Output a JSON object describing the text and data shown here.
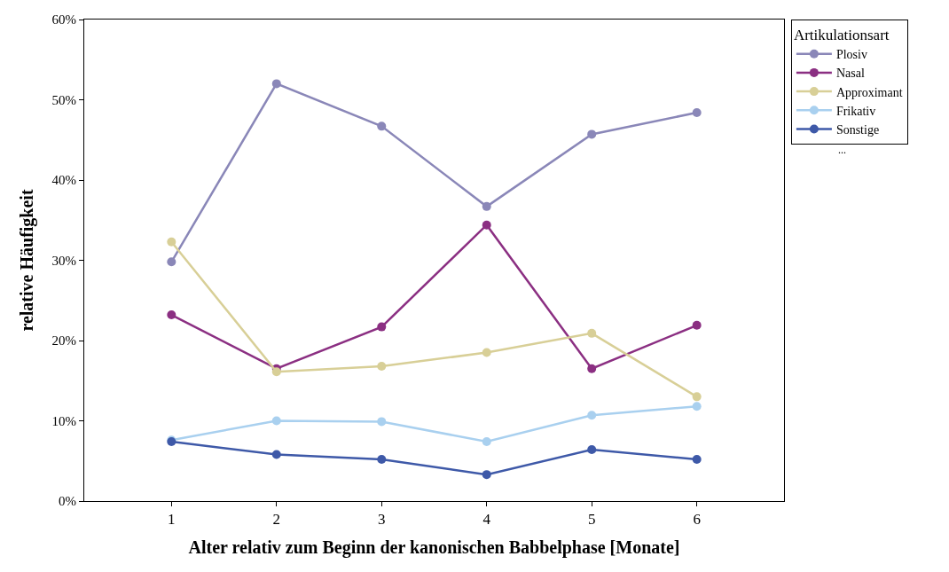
{
  "chart_data": {
    "type": "line",
    "xlabel": "Alter relativ zum Beginn der kanonischen Babbelphase [Monate]",
    "ylabel": "relative Häufigkeit",
    "legend_title": "Artikulationsart",
    "x": [
      1,
      2,
      3,
      4,
      5,
      6
    ],
    "series": [
      {
        "name": "Plosiv",
        "color": "#8a87b8",
        "values": [
          29.8,
          52.0,
          46.7,
          36.7,
          45.7,
          48.4
        ]
      },
      {
        "name": "Nasal",
        "color": "#8b2f82",
        "values": [
          23.2,
          16.5,
          21.7,
          34.4,
          16.5,
          21.9
        ]
      },
      {
        "name": "Approximant",
        "color": "#d8cf97",
        "values": [
          32.3,
          16.1,
          16.8,
          18.5,
          20.9,
          13.0
        ]
      },
      {
        "name": "Frikativ",
        "color": "#a9d0ef",
        "values": [
          7.6,
          10.0,
          9.9,
          7.4,
          10.7,
          11.8
        ]
      },
      {
        "name": "Sonstige",
        "color": "#3e59a8",
        "values": [
          7.4,
          5.8,
          5.2,
          3.3,
          6.4,
          5.2
        ]
      }
    ],
    "xlim": [
      0.17,
      6.83
    ],
    "xticks": [
      1,
      2,
      3,
      4,
      5,
      6
    ],
    "ylim": [
      0,
      60
    ],
    "yticks": [
      {
        "value": 0,
        "label": "0%"
      },
      {
        "value": 10,
        "label": "10%"
      },
      {
        "value": 20,
        "label": "20%"
      },
      {
        "value": 30,
        "label": "30%"
      },
      {
        "value": 40,
        "label": "40%"
      },
      {
        "value": 50,
        "label": "50%"
      },
      {
        "value": 60,
        "label": "60%"
      }
    ],
    "annotations": [
      "..."
    ],
    "marker": "circle",
    "line_style": "solid",
    "legend": "top right"
  }
}
